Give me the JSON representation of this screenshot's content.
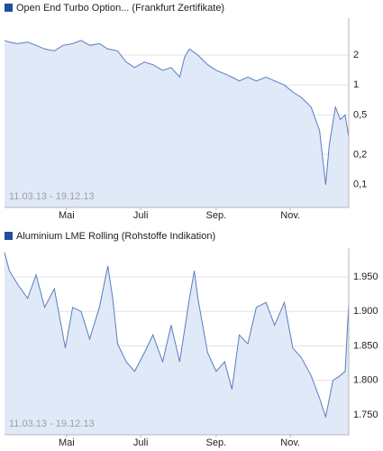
{
  "chart_data": [
    {
      "type": "line",
      "title": "Open End Turbo Option... (Frankfurt Zertifikate)",
      "date_range": "11.03.13 - 19.12.13",
      "log_scale": true,
      "grid": true,
      "color": "#5a7cc0",
      "fill_color": "#dfe9f8",
      "x": [
        0,
        4,
        11,
        19,
        26,
        33,
        41,
        48,
        56,
        63,
        70,
        78,
        85,
        93,
        100,
        107,
        115,
        122,
        130,
        137,
        144,
        148,
        152,
        159,
        167,
        174,
        181,
        187,
        193,
        200,
        207,
        215,
        222,
        230,
        237,
        244,
        252,
        259,
        264,
        267,
        272,
        276,
        280,
        283
      ],
      "values": [
        2.8,
        2.7,
        2.6,
        2.7,
        2.5,
        2.3,
        2.2,
        2.5,
        2.6,
        2.8,
        2.5,
        2.6,
        2.3,
        2.2,
        1.7,
        1.5,
        1.7,
        1.6,
        1.4,
        1.5,
        1.2,
        1.9,
        2.3,
        2.0,
        1.6,
        1.4,
        1.3,
        1.2,
        1.1,
        1.2,
        1.1,
        1.2,
        1.1,
        1.0,
        0.85,
        0.75,
        0.6,
        0.35,
        0.1,
        0.25,
        0.6,
        0.45,
        0.5,
        0.3
      ],
      "xlim": [
        0,
        283
      ],
      "xticks": [
        {
          "value": 51,
          "label": "Mai"
        },
        {
          "value": 112,
          "label": "Juli"
        },
        {
          "value": 174,
          "label": "Sep."
        },
        {
          "value": 235,
          "label": "Nov."
        }
      ],
      "ylim": [
        0.059,
        4.7
      ],
      "yticks": [
        2,
        1,
        {
          "value": 0.5,
          "label": "0,5"
        },
        {
          "value": 0.2,
          "label": "0,2"
        },
        {
          "value": 0.1,
          "label": "0,1"
        }
      ]
    },
    {
      "type": "line",
      "title": "Aluminium LME Rolling (Rohstoffe Indikation)",
      "date_range": "11.03.13 - 19.12.13",
      "log_scale": false,
      "grid": true,
      "color": "#5a7cc0",
      "fill_color": "#dfe9f8",
      "x": [
        0,
        4,
        11,
        19,
        26,
        33,
        41,
        50,
        56,
        63,
        70,
        78,
        85,
        89,
        93,
        100,
        107,
        115,
        122,
        130,
        137,
        144,
        152,
        156,
        159,
        167,
        174,
        181,
        187,
        193,
        200,
        207,
        215,
        222,
        230,
        237,
        244,
        252,
        259,
        264,
        270,
        276,
        280,
        283
      ],
      "values": [
        1.986,
        1.959,
        1.939,
        1.919,
        1.953,
        1.906,
        1.933,
        1.847,
        1.906,
        1.9,
        1.86,
        1.906,
        1.966,
        1.919,
        1.853,
        1.827,
        1.813,
        1.84,
        1.866,
        1.827,
        1.88,
        1.827,
        1.919,
        1.959,
        1.919,
        1.84,
        1.813,
        1.827,
        1.787,
        1.866,
        1.853,
        1.906,
        1.913,
        1.88,
        1.913,
        1.847,
        1.833,
        1.807,
        1.774,
        1.747,
        1.8,
        1.807,
        1.813,
        1.913
      ],
      "xlim": [
        0,
        283
      ],
      "xticks": [
        {
          "value": 51,
          "label": "Mai"
        },
        {
          "value": 112,
          "label": "Juli"
        },
        {
          "value": 174,
          "label": "Sep."
        },
        {
          "value": 235,
          "label": "Nov."
        }
      ],
      "ylim": [
        1.721,
        1.992
      ],
      "yticks": [
        {
          "value": 1.95,
          "label": "1.950"
        },
        {
          "value": 1.9,
          "label": "1.900"
        },
        {
          "value": 1.85,
          "label": "1.850"
        },
        {
          "value": 1.8,
          "label": "1.800"
        },
        {
          "value": 1.75,
          "label": "1.750"
        }
      ]
    }
  ]
}
